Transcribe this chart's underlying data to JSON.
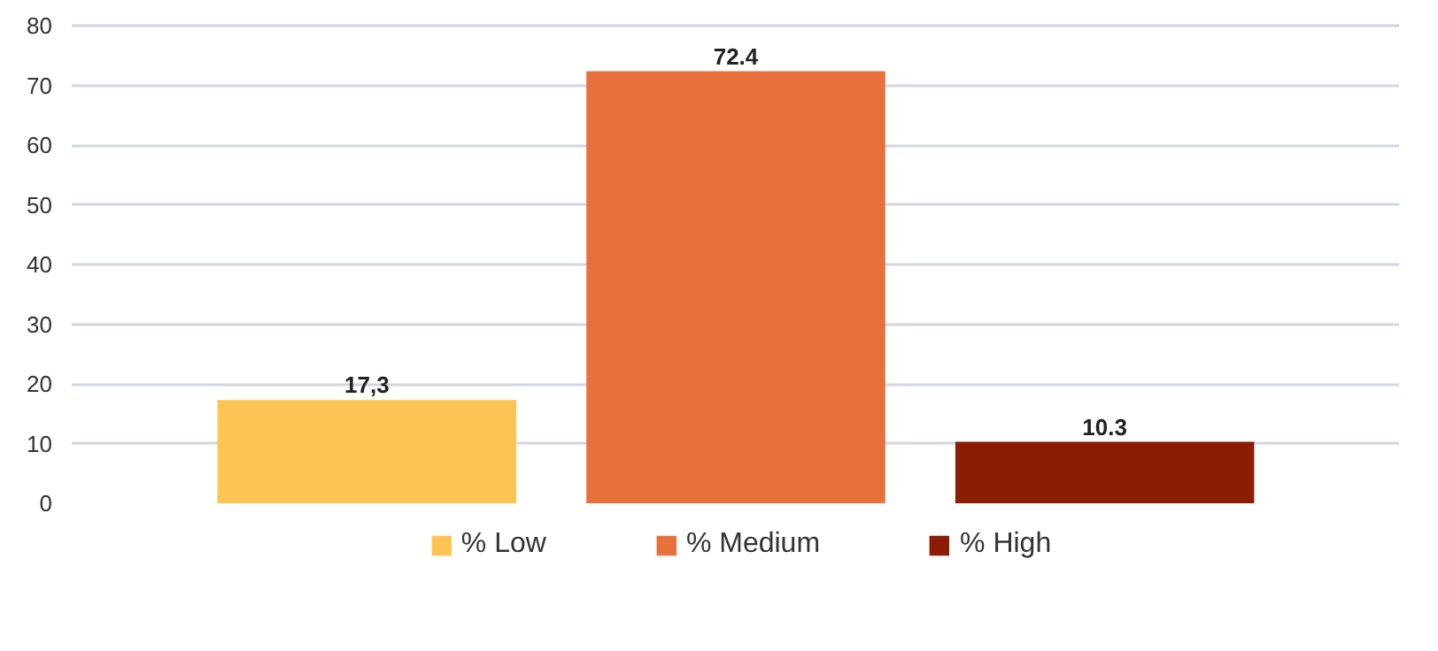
{
  "chart_data": {
    "type": "bar",
    "categories": [
      null,
      null,
      null
    ],
    "series": [
      {
        "name": "% Low",
        "color": "#fdc453",
        "values": [
          17.3,
          null,
          null
        ],
        "value_labels": [
          "17,3",
          null,
          null
        ]
      },
      {
        "name": "% Medium",
        "color": "#e8703a",
        "values": [
          null,
          72.4,
          null
        ],
        "value_labels": [
          null,
          "72.4",
          null
        ]
      },
      {
        "name": "% High",
        "color": "#8c1c03",
        "values": [
          null,
          null,
          10.3
        ],
        "value_labels": [
          null,
          null,
          "10.3"
        ]
      }
    ],
    "ylim": [
      0,
      80
    ],
    "yticks": [
      0,
      10,
      20,
      30,
      40,
      50,
      60,
      70,
      80
    ],
    "grid": "y",
    "legend": "bottom"
  }
}
